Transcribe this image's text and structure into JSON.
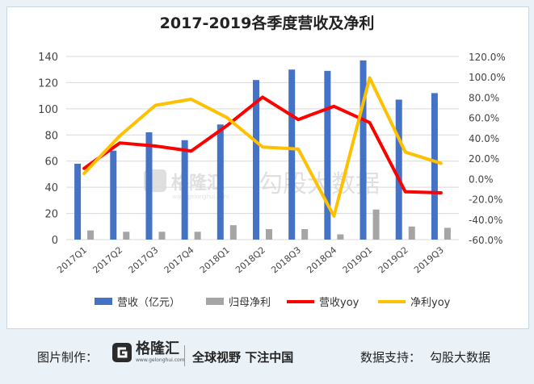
{
  "title": "2017-2019各季度营收及净利",
  "watermark": {
    "logo_name": "格隆汇",
    "logo_sub": "www.gelonghui.com",
    "text": "勾股大数据"
  },
  "footer": {
    "made_label": "图片制作：",
    "logo_name": "格隆汇",
    "logo_sub": "www.gelonghui.com",
    "slogan": "全球视野 下注中国",
    "support_label": "数据支持：",
    "support_name": "勾股大数据"
  },
  "chart_data": {
    "type": "bar",
    "title": "2017-2019各季度营收及净利",
    "categories": [
      "2017Q1",
      "2017Q2",
      "2017Q3",
      "2017Q4",
      "2018Q1",
      "2018Q2",
      "2018Q3",
      "2018Q4",
      "2019Q1",
      "2019Q2",
      "2019Q3"
    ],
    "y_left": {
      "min": 0,
      "max": 140,
      "step": 20
    },
    "y_right": {
      "min": -60,
      "max": 120,
      "step": 20,
      "format": "percent"
    },
    "grid": true,
    "legend_position": "bottom",
    "series": [
      {
        "name": "营收（亿元）",
        "type": "bar",
        "axis": "left",
        "color": "#4472c4",
        "values": [
          58,
          68,
          82,
          76,
          88,
          122,
          130,
          129,
          137,
          107,
          112
        ]
      },
      {
        "name": "归母净利",
        "type": "bar",
        "axis": "left",
        "color": "#a5a5a5",
        "values": [
          7,
          6,
          6,
          6,
          11,
          8,
          8,
          4,
          23,
          10,
          9
        ]
      },
      {
        "name": "营收yoy",
        "type": "line",
        "axis": "right",
        "color": "#ff0000",
        "values": [
          10,
          35,
          32,
          27,
          52,
          80,
          58,
          71,
          55,
          -13,
          -14
        ]
      },
      {
        "name": "净利yoy",
        "type": "line",
        "axis": "right",
        "color": "#ffc000",
        "values": [
          5,
          42,
          72,
          78,
          60,
          31,
          29,
          -37,
          99,
          26,
          15
        ]
      }
    ]
  }
}
